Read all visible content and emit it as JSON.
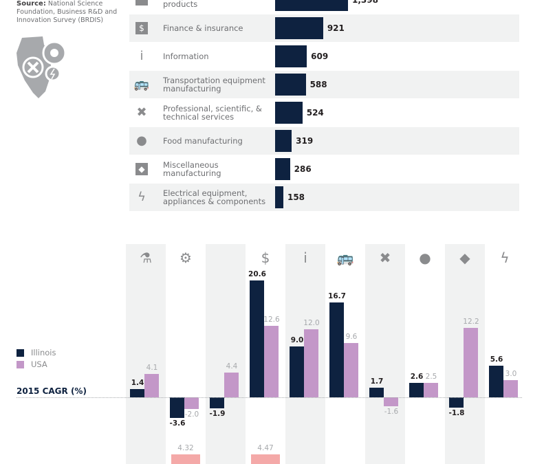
{
  "source": {
    "label": "Source:",
    "text": "National Science Foundation, Business R&D and Innovation Survey (BRDIS)"
  },
  "industries": [
    {
      "label": "Computer & electronic products",
      "icon": "code-window-icon",
      "glyph": "</>",
      "value": 1398,
      "value_label": "1,398"
    },
    {
      "label": "Finance & insurance",
      "icon": "dollar-icon",
      "glyph": "$",
      "value": 921,
      "value_label": "921"
    },
    {
      "label": "Information",
      "icon": "info-icon",
      "glyph": "i",
      "value": 609,
      "value_label": "609"
    },
    {
      "label": "Transportation equipment manufacturing",
      "icon": "bus-icon",
      "glyph": "🚌",
      "value": 588,
      "value_label": "588"
    },
    {
      "label": "Professional, scientific, & technical services",
      "icon": "tools-icon",
      "glyph": "✖",
      "value": 524,
      "value_label": "524"
    },
    {
      "label": "Food manufacturing",
      "icon": "apple-icon",
      "glyph": "●",
      "value": 319,
      "value_label": "319"
    },
    {
      "label": "Miscellaneous manufacturing",
      "icon": "diamond-icon",
      "glyph": "◆",
      "value": 286,
      "value_label": "286"
    },
    {
      "label": "Electrical equipment, appliances & components",
      "icon": "lightning-icon",
      "glyph": "ϟ",
      "value": 158,
      "value_label": "158"
    }
  ],
  "chart_data": {
    "type": "bar",
    "title": "2015 CAGR (%)",
    "categories": [
      "chemistry-icon",
      "gear-icon",
      "code-window-icon",
      "dollar-icon",
      "info-icon",
      "bus-icon",
      "tools-icon",
      "apple-icon",
      "diamond-icon",
      "lightning-icon"
    ],
    "category_glyphs": [
      "⚗",
      "⚙",
      "</>",
      "$",
      "i",
      "🚌",
      "✖",
      "●",
      "◆",
      "ϟ"
    ],
    "series": [
      {
        "name": "Illinois",
        "color": "#0e2240",
        "values": [
          1.4,
          -3.6,
          -1.9,
          20.6,
          9.0,
          16.7,
          1.7,
          2.6,
          -1.8,
          5.6
        ]
      },
      {
        "name": "USA",
        "color": "#c397c8",
        "values": [
          4.1,
          -2.0,
          4.4,
          12.6,
          12.0,
          9.6,
          -1.6,
          2.5,
          12.2,
          3.0
        ]
      }
    ],
    "extra_values": [
      null,
      4.32,
      null,
      4.47,
      null,
      null,
      null,
      null,
      null,
      null
    ],
    "extra_color": "#f4a9a8",
    "legend_position": "left",
    "grid": false
  }
}
